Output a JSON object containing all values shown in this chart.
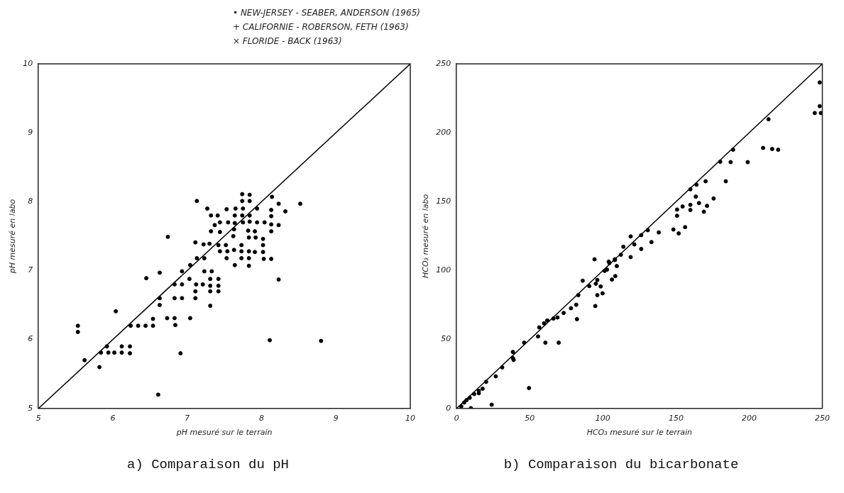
{
  "chart_data": [
    {
      "type": "scatter",
      "title": "a) Comparaison du pH",
      "xlabel": "pH mesuré sur le terrain",
      "ylabel": "pH mesuré en labo",
      "annotations": [
        "• NEW-JERSEY - SEABER, ANDERSON (1965)",
        "+ CALIFORNIE - ROBERSON, FETH (1963)",
        "× FLORIDE - BACK (1963)"
      ],
      "xlim": [
        5,
        10
      ],
      "ylim": [
        5,
        10
      ],
      "xticks": [
        5,
        6,
        7,
        8,
        9,
        10
      ],
      "yticks": [
        5,
        6,
        7,
        8,
        9,
        10
      ],
      "grid": false,
      "series": [
        {
          "color": "#000000",
          "marker": "circle",
          "x": [
            5.53,
            5.53,
            5.62,
            5.82,
            5.84,
            5.94,
            6.02,
            6.12,
            6.23,
            5.92,
            6.12,
            6.23,
            6.91,
            6.04,
            6.24,
            6.34,
            6.44,
            6.54,
            6.54,
            6.73,
            6.83,
            6.84,
            7.04,
            6.63,
            6.63,
            6.83,
            6.93,
            7.11,
            7.11,
            7.31,
            7.42,
            7.31,
            6.83,
            6.93,
            7.12,
            7.21,
            7.31,
            7.42,
            7.03,
            7.31,
            7.42,
            6.45,
            6.63,
            6.93,
            7.23,
            7.33,
            7.04,
            7.13,
            7.23,
            6.74,
            8.23,
            8.11,
            8.8,
            7.11,
            7.22,
            7.3,
            7.42,
            7.52,
            7.44,
            7.54,
            7.63,
            7.73,
            7.73,
            7.83,
            7.91,
            8.02,
            8.02,
            8.02,
            7.92,
            7.83,
            7.62,
            7.53,
            7.73,
            7.83,
            8.03,
            8.13,
            7.64,
            7.83,
            7.32,
            7.44,
            7.37,
            7.44,
            7.55,
            7.64,
            7.75,
            7.84,
            7.94,
            8.04,
            8.13,
            8.23,
            8.13,
            7.91,
            7.82,
            7.63,
            7.32,
            7.41,
            7.64,
            7.74,
            7.84,
            8.13,
            7.27,
            7.53,
            7.65,
            7.75,
            7.94,
            8.13,
            8.32,
            7.13,
            7.74,
            7.84,
            7.74,
            7.84,
            8.14,
            8.23,
            8.52,
            6.61
          ],
          "values": [
            6.2,
            6.11,
            5.7,
            5.6,
            5.81,
            5.81,
            5.81,
            5.81,
            5.8,
            5.9,
            5.9,
            5.9,
            5.8,
            6.41,
            6.2,
            6.2,
            6.2,
            6.2,
            6.3,
            6.31,
            6.31,
            6.21,
            6.31,
            6.5,
            6.6,
            6.6,
            6.6,
            6.6,
            6.7,
            6.7,
            6.7,
            6.49,
            6.8,
            6.8,
            6.8,
            6.8,
            6.78,
            6.78,
            6.88,
            6.88,
            6.88,
            6.89,
            6.97,
            6.99,
            6.99,
            6.99,
            7.08,
            7.18,
            7.18,
            7.49,
            6.87,
            5.99,
            5.98,
            7.41,
            7.38,
            7.39,
            7.37,
            7.37,
            7.28,
            7.28,
            7.3,
            7.37,
            7.28,
            7.28,
            7.27,
            7.27,
            7.37,
            7.46,
            7.48,
            7.48,
            7.5,
            7.18,
            7.18,
            7.18,
            7.17,
            7.17,
            7.08,
            7.07,
            7.57,
            7.56,
            7.66,
            7.7,
            7.7,
            7.69,
            7.7,
            7.71,
            7.7,
            7.7,
            7.67,
            7.66,
            7.57,
            7.57,
            7.58,
            7.6,
            7.8,
            7.8,
            7.8,
            7.8,
            7.8,
            7.79,
            7.9,
            7.89,
            7.9,
            7.9,
            7.9,
            7.88,
            7.86,
            8.01,
            8.01,
            8.01,
            8.11,
            8.1,
            8.07,
            7.97,
            7.97,
            5.2
          ]
        },
        {
          "type": "line",
          "color": "#000000",
          "marker": "none",
          "x": [
            5,
            10
          ],
          "values": [
            5,
            10
          ]
        }
      ]
    },
    {
      "type": "scatter",
      "title": "b) Comparaison du bicarbonate",
      "xlabel": "HCO₃ mesuré sur le terrain",
      "ylabel": "HCO₃ mesuré en labo",
      "xlim": [
        0,
        250
      ],
      "ylim": [
        0,
        250
      ],
      "xticks": [
        0,
        50,
        100,
        150,
        200,
        250
      ],
      "yticks": [
        0,
        50,
        100,
        150,
        200,
        250
      ],
      "grid": false,
      "series": [
        {
          "color": "#000000",
          "marker": "circle",
          "x": [
            3.2,
            5.2,
            6.8,
            9,
            9.8,
            12,
            15.2,
            15.2,
            17.8,
            20.2,
            26.8,
            31.2,
            38.5,
            39,
            38.5,
            46.2,
            49.5,
            24,
            55.7,
            56.5,
            60.7,
            59.8,
            62,
            66.2,
            69.8,
            69,
            73.2,
            78.2,
            81.8,
            82.3,
            83.2,
            86.2,
            90.7,
            94.3,
            94.8,
            95.2,
            96.2,
            98.5,
            96.2,
            99.8,
            101.2,
            102.8,
            106.2,
            104.5,
            108.2,
            108.5,
            109.5,
            104,
            108.2,
            112.3,
            114,
            119,
            119,
            121.5,
            126.2,
            126.2,
            130.7,
            133.2,
            138.2,
            148.2,
            151.8,
            156.2,
            150.7,
            150.7,
            154.5,
            159.8,
            159.8,
            163.5,
            165.7,
            169,
            171.2,
            175.7,
            159.8,
            164,
            170.2,
            184,
            180.2,
            187.3,
            199,
            189,
            209.5,
            215.7,
            219.8,
            213.2,
            248.2,
            248.2,
            244.8,
            249
          ],
          "values": [
            1.5,
            4.3,
            6,
            7.7,
            0.2,
            10.5,
            11,
            12.7,
            14.3,
            19.3,
            23.3,
            29.8,
            36.5,
            35.2,
            41,
            47.7,
            14.8,
            2.7,
            52.2,
            58.8,
            47.7,
            61.8,
            63.8,
            65.2,
            47.7,
            66,
            69.3,
            72.7,
            75.2,
            64.8,
            82.2,
            92.7,
            88.8,
            108.2,
            74.3,
            90.5,
            82.2,
            88.5,
            93.2,
            83.5,
            99.8,
            100.7,
            93.5,
            105.5,
            107.7,
            96,
            103.3,
            106.5,
            108.2,
            111.5,
            117.3,
            109.8,
            124.8,
            119,
            125.7,
            115.7,
            129.3,
            120.7,
            127.7,
            129.8,
            127,
            131.5,
            139.8,
            144.3,
            146.5,
            147.7,
            144,
            153.7,
            149,
            142.7,
            147,
            152.3,
            159,
            162.3,
            164.8,
            164.8,
            179,
            178.7,
            178.7,
            187.7,
            189,
            188.2,
            187.7,
            209.8,
            236.5,
            219.3,
            214.3,
            214.3
          ]
        },
        {
          "type": "line",
          "color": "#000000",
          "marker": "none",
          "x": [
            0,
            250
          ],
          "values": [
            0,
            250
          ]
        }
      ]
    }
  ]
}
